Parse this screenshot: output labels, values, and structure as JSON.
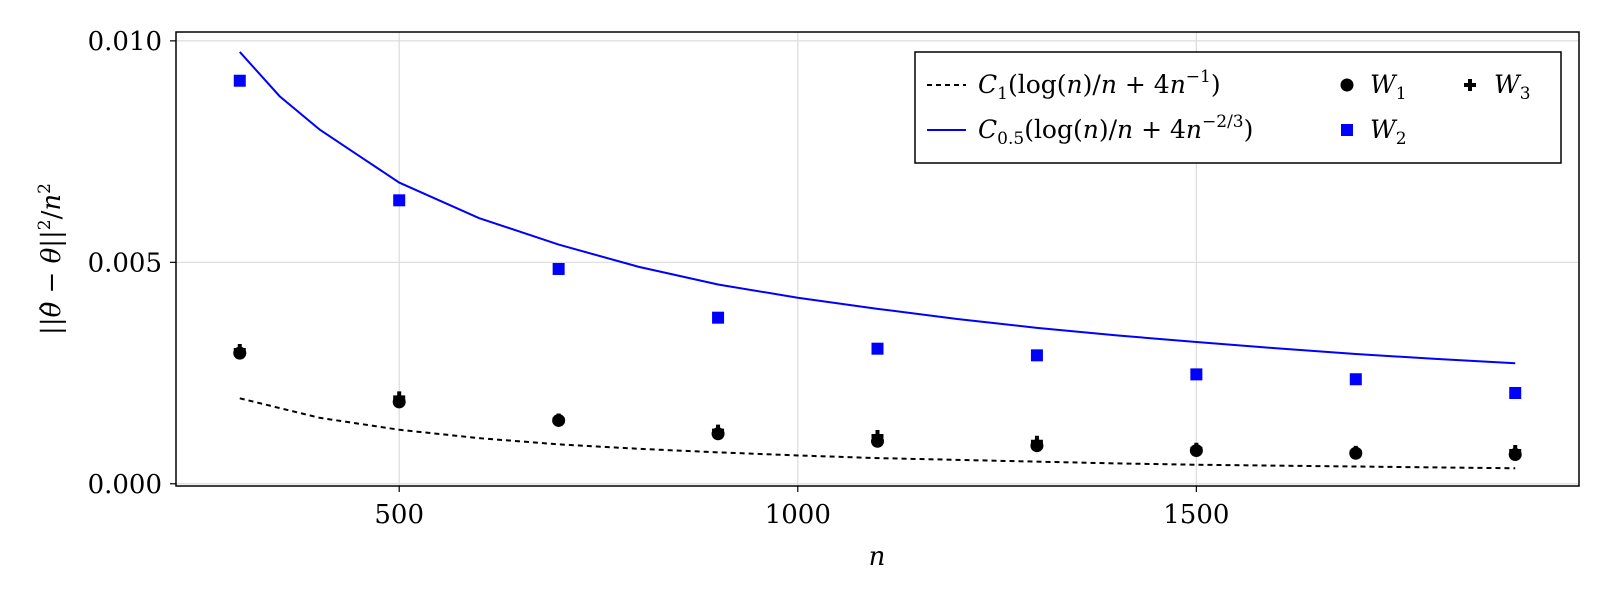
{
  "chart_data": {
    "type": "scatter",
    "xlabel": "n",
    "ylabel": "||θ̂ − θ||² / n²",
    "x_ticks": [
      500,
      1000,
      1500
    ],
    "x_tick_labels": [
      "500",
      "1000",
      "1500"
    ],
    "y_ticks": [
      0.0,
      0.005,
      0.01
    ],
    "y_tick_labels": [
      "0.000",
      "0.005",
      "0.010"
    ],
    "xlim": [
      220,
      1980
    ],
    "ylim": [
      -5e-05,
      0.0102
    ],
    "grid": true,
    "legend_position": "top-right",
    "series": [
      {
        "name": "C₁(log(n)/n + 4n⁻¹)",
        "kind": "line",
        "style": "dashed",
        "color": "#000000",
        "x": [
          300,
          400,
          500,
          600,
          700,
          800,
          900,
          1000,
          1100,
          1200,
          1300,
          1400,
          1500,
          1600,
          1700,
          1800,
          1900
        ],
        "values": [
          0.00193,
          0.00149,
          0.00122,
          0.00103,
          0.00089,
          0.00079,
          0.00071,
          0.00064,
          0.00058,
          0.00054,
          0.0005,
          0.00046,
          0.00043,
          0.00041,
          0.00039,
          0.00037,
          0.00035
        ]
      },
      {
        "name": "C₀.₅(log(n)/n + 4n⁻²ᐟ³)",
        "kind": "line",
        "style": "solid",
        "color": "#0000ff",
        "x": [
          300,
          350,
          400,
          450,
          500,
          600,
          700,
          800,
          900,
          1000,
          1100,
          1200,
          1300,
          1400,
          1500,
          1600,
          1700,
          1800,
          1900
        ],
        "values": [
          0.00975,
          0.00875,
          0.008,
          0.0074,
          0.0068,
          0.006,
          0.0054,
          0.0049,
          0.0045,
          0.0042,
          0.00395,
          0.00372,
          0.00352,
          0.00335,
          0.0032,
          0.00306,
          0.00293,
          0.00282,
          0.00272
        ]
      },
      {
        "name": "W₁",
        "kind": "points",
        "marker": "circle",
        "color": "#000000",
        "x": [
          300,
          500,
          700,
          900,
          1100,
          1300,
          1500,
          1700,
          1900
        ],
        "values": [
          0.00295,
          0.00185,
          0.00143,
          0.00113,
          0.00096,
          0.00086,
          0.00075,
          0.00069,
          0.00066
        ]
      },
      {
        "name": "W₂",
        "kind": "points",
        "marker": "square",
        "color": "#0000ff",
        "x": [
          300,
          500,
          700,
          900,
          1100,
          1300,
          1500,
          1700,
          1900
        ],
        "values": [
          0.0091,
          0.0064,
          0.00485,
          0.00375,
          0.00305,
          0.0029,
          0.00247,
          0.00236,
          0.00205
        ]
      },
      {
        "name": "W₃",
        "kind": "points",
        "marker": "plus",
        "color": "#000000",
        "x": [
          300,
          500,
          700,
          900,
          1100,
          1300,
          1500,
          1700,
          1900
        ],
        "values": [
          0.00302,
          0.00195,
          0.00145,
          0.0012,
          0.00108,
          0.00095,
          0.00079,
          0.00072,
          0.00074
        ]
      }
    ]
  }
}
